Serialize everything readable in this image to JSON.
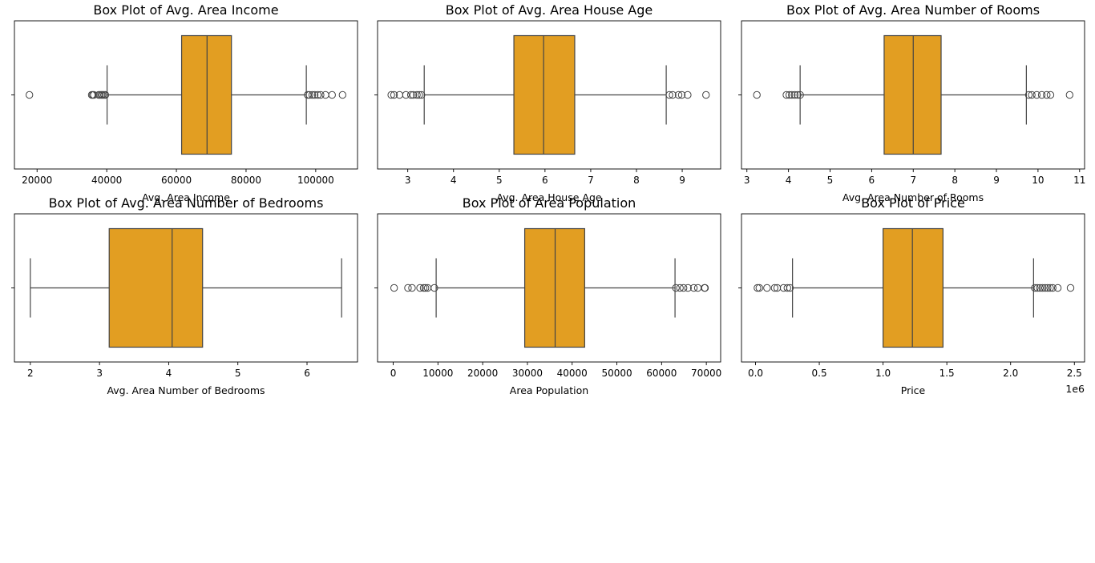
{
  "colors": {
    "box_fill": "#e29e22",
    "line": "#444444",
    "frame": "#000000"
  },
  "chart_data": [
    {
      "type": "box",
      "title": "Box Plot of Avg. Area Income",
      "xlabel": "Avg. Area Income",
      "xlim": [
        13500,
        112000
      ],
      "xticks": [
        20000,
        40000,
        60000,
        80000,
        100000
      ],
      "xtick_labels": [
        "20000",
        "40000",
        "60000",
        "80000",
        "100000"
      ],
      "offset_text": "",
      "whisker_low": 40100,
      "q1": 61500,
      "median": 68800,
      "q3": 75800,
      "whisker_high": 97300,
      "outliers": [
        17800,
        35700,
        36000,
        36300,
        37700,
        38100,
        38500,
        38800,
        39200,
        39600,
        97700,
        98200,
        99000,
        99700,
        100600,
        101400,
        102800,
        104700,
        107700
      ]
    },
    {
      "type": "box",
      "title": "Box Plot of Avg. Area House Age",
      "xlabel": "Avg. Area House Age",
      "xlim": [
        2.34,
        9.84
      ],
      "xticks": [
        3,
        4,
        5,
        6,
        7,
        8,
        9
      ],
      "xtick_labels": [
        "3",
        "4",
        "5",
        "6",
        "7",
        "8",
        "9"
      ],
      "offset_text": "",
      "whisker_low": 3.36,
      "q1": 5.32,
      "median": 5.97,
      "q3": 6.65,
      "whisker_high": 8.65,
      "outliers": [
        2.64,
        2.7,
        2.82,
        2.96,
        3.07,
        3.12,
        3.2,
        3.25,
        3.3,
        8.72,
        8.79,
        8.92,
        8.99,
        9.12,
        9.52
      ]
    },
    {
      "type": "box",
      "title": "Box Plot of Avg. Area Number of Rooms",
      "xlabel": "Avg. Area Number of Rooms",
      "xlim": [
        2.87,
        11.12
      ],
      "xticks": [
        3,
        4,
        5,
        6,
        7,
        8,
        9,
        10,
        11
      ],
      "xtick_labels": [
        "3",
        "4",
        "5",
        "6",
        "7",
        "8",
        "9",
        "10",
        "11"
      ],
      "offset_text": "",
      "whisker_low": 4.28,
      "q1": 6.3,
      "median": 7.0,
      "q3": 7.67,
      "whisker_high": 9.72,
      "outliers": [
        3.24,
        3.95,
        4.02,
        4.08,
        4.15,
        4.22,
        4.28,
        9.78,
        9.85,
        9.97,
        10.09,
        10.21,
        10.3,
        10.76
      ]
    },
    {
      "type": "box",
      "title": "Box Plot of Avg. Area Number of Bedrooms",
      "xlabel": "Avg. Area Number of Bedrooms",
      "xlim": [
        1.77,
        6.73
      ],
      "xticks": [
        2,
        3,
        4,
        5,
        6
      ],
      "xtick_labels": [
        "2",
        "3",
        "4",
        "5",
        "6"
      ],
      "offset_text": "",
      "whisker_low": 2.0,
      "q1": 3.14,
      "median": 4.05,
      "q3": 4.49,
      "whisker_high": 6.5,
      "outliers": []
    },
    {
      "type": "box",
      "title": "Box Plot of Area Population",
      "xlabel": "Area Population",
      "xlim": [
        -3500,
        73200
      ],
      "xticks": [
        0,
        10000,
        20000,
        30000,
        40000,
        50000,
        60000,
        70000
      ],
      "xtick_labels": [
        "0",
        "10000",
        "20000",
        "30000",
        "40000",
        "50000",
        "60000",
        "70000"
      ],
      "offset_text": "",
      "whisker_low": 9600,
      "q1": 29400,
      "median": 36200,
      "q3": 42800,
      "whisker_high": 63000,
      "outliers": [
        200,
        3300,
        4200,
        6000,
        6800,
        7200,
        7700,
        9200,
        63200,
        64100,
        64900,
        65900,
        67200,
        68100,
        69600,
        69700
      ]
    },
    {
      "type": "box",
      "title": "Box Plot of Price",
      "xlabel": "Price",
      "xlim": [
        -0.11,
        2.58
      ],
      "xticks": [
        0.0,
        0.5,
        1.0,
        1.5,
        2.0,
        2.5
      ],
      "xtick_labels": [
        "0.0",
        "0.5",
        "1.0",
        "1.5",
        "2.0",
        "2.5"
      ],
      "offset_text": "1e6",
      "whisker_low": 0.29,
      "q1": 1.0,
      "median": 1.23,
      "q3": 1.47,
      "whisker_high": 2.18,
      "outliers": [
        0.015,
        0.03,
        0.09,
        0.15,
        0.17,
        0.22,
        0.25,
        0.27,
        2.19,
        2.21,
        2.23,
        2.25,
        2.27,
        2.29,
        2.31,
        2.33,
        2.37,
        2.47
      ]
    }
  ]
}
